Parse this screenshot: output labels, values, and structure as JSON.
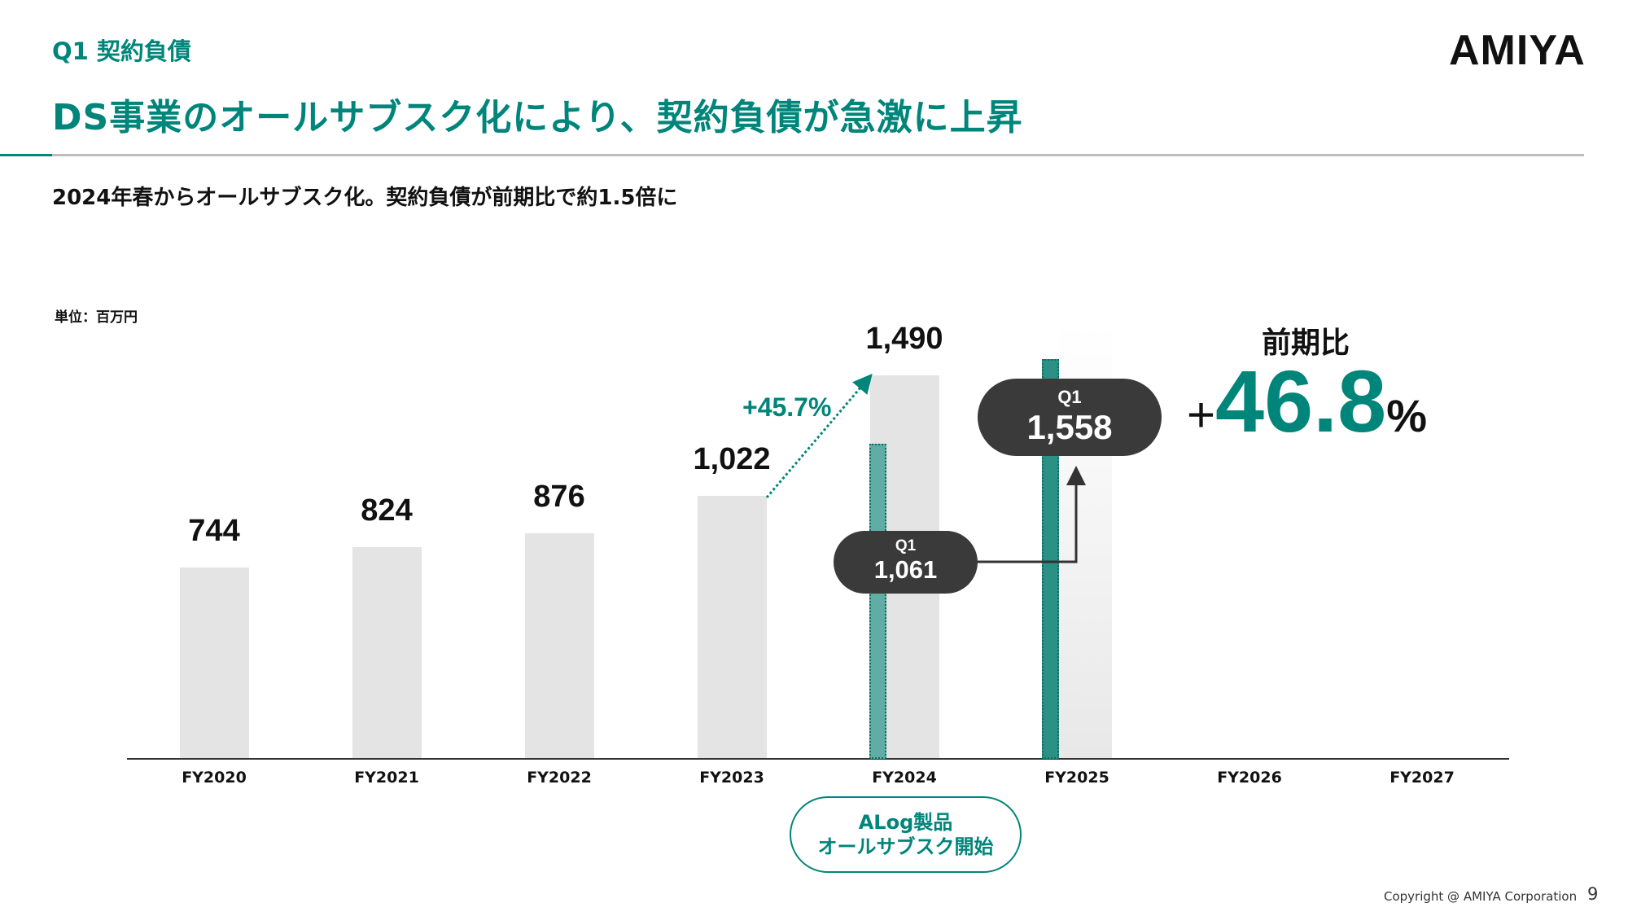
{
  "header": {
    "section": "Q1 契約負債",
    "title": "DS事業のオールサブスク化により、契約負債が急激に上昇",
    "subtitle": "2024年春からオールサブスク化。契約負債が前期比で約1.5倍に",
    "logo": "AMIYA"
  },
  "colors": {
    "accent": "#00857a",
    "bar": "#e4e4e4",
    "bubble": "#3a3a3a"
  },
  "chart_data": {
    "type": "bar",
    "unit_label": "単位：百万円",
    "categories": [
      "FY2020",
      "FY2021",
      "FY2022",
      "FY2023",
      "FY2024",
      "FY2025",
      "FY2026",
      "FY2027"
    ],
    "values": [
      744,
      824,
      876,
      1022,
      1490,
      null,
      null,
      null
    ],
    "value_labels": [
      "744",
      "824",
      "876",
      "1,022",
      "1,490",
      "",
      "",
      ""
    ],
    "q1_series": {
      "FY2024": {
        "label": "Q1",
        "value": 1061,
        "value_label": "1,061"
      },
      "FY2025": {
        "label": "Q1",
        "value": 1558,
        "value_label": "1,558"
      }
    },
    "growth_annotation": "+45.7%",
    "yoy": {
      "label": "前期比",
      "sign": "+",
      "value": "46.8",
      "suffix": "%"
    },
    "grid": false
  },
  "callout": {
    "line1": "ALog製品",
    "line2": "オールサブスク開始"
  },
  "footer": {
    "copyright": "Copyright @ AMIYA Corporation",
    "page": "9"
  }
}
